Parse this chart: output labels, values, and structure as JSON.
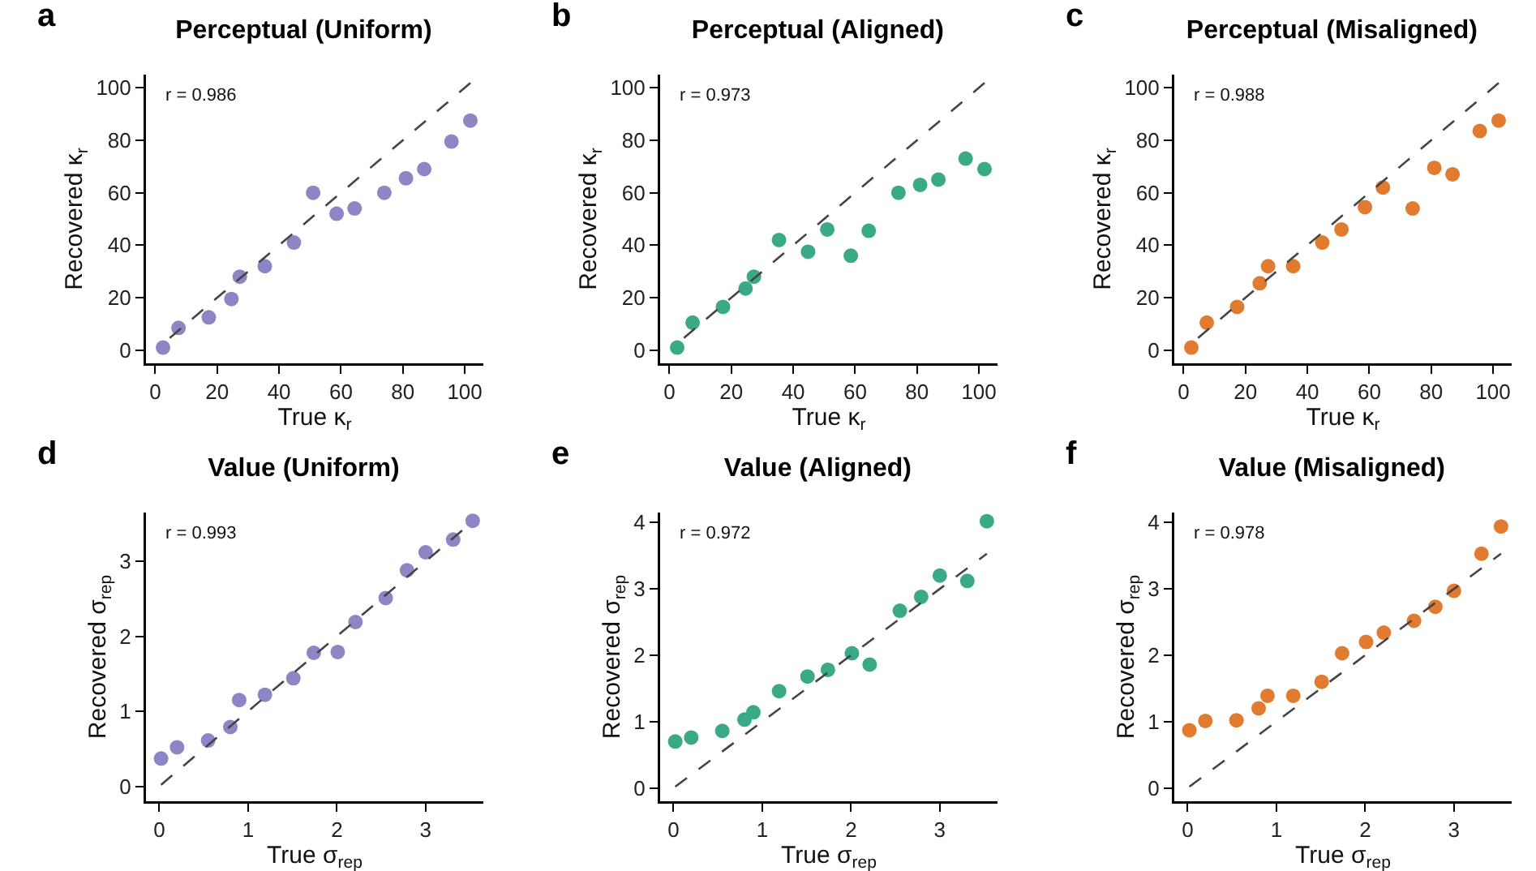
{
  "chart_data": [
    {
      "type": "scatter",
      "title": "Perceptual (Uniform)",
      "xlabel": "True κ$_{r}$",
      "ylabel": "Recovered κ$_{r}$",
      "annotations": [
        "a",
        "r = 0.986"
      ],
      "marker": "circle",
      "grid": false,
      "xlim": [
        -3,
        106
      ],
      "ylim": [
        -5,
        105
      ],
      "xticks": [
        0,
        20,
        40,
        60,
        80,
        100
      ],
      "yticks": [
        0,
        20,
        40,
        60,
        80,
        100
      ],
      "x": [
        2.5,
        7.5,
        17.3,
        24.6,
        27.3,
        35.4,
        44.8,
        51.0,
        58.6,
        64.4,
        74.0,
        81.0,
        86.9,
        95.7,
        101.8
      ],
      "series": [
        {
          "color": "#8c86c4",
          "values": [
            1,
            8.5,
            12.5,
            19.5,
            28,
            32,
            41,
            60,
            52,
            54,
            60,
            65.5,
            69,
            79.5,
            87.5
          ]
        },
        {
          "type": "line",
          "line_style": "dashed",
          "marker": "none",
          "color": "#444444",
          "x": [
            101.8,
            2.5
          ],
          "values": [
            101.8,
            2.5
          ]
        }
      ]
    },
    {
      "type": "scatter",
      "title": "Perceptual (Aligned)",
      "xlabel": "True κ$_{r}$",
      "ylabel": "Recovered κ$_{r}$",
      "annotations": [
        "b",
        "r = 0.973"
      ],
      "marker": "circle",
      "grid": false,
      "xlim": [
        -3,
        106
      ],
      "ylim": [
        -5,
        105
      ],
      "xticks": [
        0,
        20,
        40,
        60,
        80,
        100
      ],
      "yticks": [
        0,
        20,
        40,
        60,
        80,
        100
      ],
      "x": [
        2.5,
        7.5,
        17.3,
        24.6,
        27.3,
        35.4,
        44.8,
        51.0,
        58.6,
        64.4,
        74.0,
        81.0,
        86.9,
        95.7,
        101.8
      ],
      "series": [
        {
          "color": "#3aaa86",
          "values": [
            1,
            10.5,
            16.5,
            23.5,
            28,
            42,
            37.5,
            46,
            36,
            45.5,
            60,
            63,
            65,
            73,
            69
          ]
        },
        {
          "type": "line",
          "line_style": "dashed",
          "marker": "none",
          "color": "#444444",
          "x": [
            101.8,
            2.5
          ],
          "values": [
            101.8,
            2.5
          ]
        }
      ]
    },
    {
      "type": "scatter",
      "title": "Perceptual (Misaligned)",
      "xlabel": "True κ$_{r}$",
      "ylabel": "Recovered κ$_{r}$",
      "annotations": [
        "c",
        "r = 0.988"
      ],
      "marker": "circle",
      "grid": false,
      "xlim": [
        -3,
        106
      ],
      "ylim": [
        -5,
        105
      ],
      "xticks": [
        0,
        20,
        40,
        60,
        80,
        100
      ],
      "yticks": [
        0,
        20,
        40,
        60,
        80,
        100
      ],
      "x": [
        2.5,
        7.5,
        17.3,
        24.6,
        27.3,
        35.4,
        44.8,
        51.0,
        58.6,
        64.4,
        74.0,
        81.0,
        86.9,
        95.7,
        101.8
      ],
      "series": [
        {
          "color": "#e07b30",
          "values": [
            1,
            10.5,
            16.5,
            25.5,
            32,
            32,
            41,
            46,
            54.5,
            62,
            54,
            69.5,
            67,
            83.5,
            87.5
          ]
        },
        {
          "type": "line",
          "line_style": "dashed",
          "marker": "none",
          "color": "#444444",
          "x": [
            101.8,
            2.5
          ],
          "values": [
            101.8,
            2.5
          ]
        }
      ]
    },
    {
      "type": "scatter",
      "title": "Value (Uniform)",
      "xlabel": "True σ$_{rep}$",
      "ylabel": "Recovered σ$_{rep}$",
      "annotations": [
        "d",
        "r = 0.993"
      ],
      "marker": "circle",
      "grid": false,
      "xlim": [
        -0.15,
        3.65
      ],
      "ylim": [
        -0.2,
        3.65
      ],
      "xticks": [
        0,
        1,
        2,
        3
      ],
      "yticks": [
        0,
        1,
        2,
        3
      ],
      "x": [
        0.02,
        0.2,
        0.55,
        0.8,
        0.9,
        1.19,
        1.51,
        1.74,
        2.01,
        2.21,
        2.55,
        2.79,
        3.0,
        3.31,
        3.53
      ],
      "series": [
        {
          "color": "#8c86c4",
          "values": [
            0.37,
            0.52,
            0.61,
            0.79,
            1.15,
            1.22,
            1.44,
            1.78,
            1.79,
            2.19,
            2.51,
            2.88,
            3.12,
            3.29,
            3.54
          ]
        },
        {
          "type": "line",
          "line_style": "dashed",
          "marker": "none",
          "color": "#444444",
          "x": [
            0.02,
            3.53
          ],
          "values": [
            0.02,
            3.53
          ]
        }
      ]
    },
    {
      "type": "scatter",
      "title": "Value (Aligned)",
      "xlabel": "True σ$_{rep}$",
      "ylabel": "Recovered σ$_{rep}$",
      "annotations": [
        "e",
        "r = 0.972"
      ],
      "marker": "circle",
      "grid": false,
      "xlim": [
        -0.15,
        3.65
      ],
      "ylim": [
        -0.2,
        4.15
      ],
      "xticks": [
        0,
        1,
        2,
        3
      ],
      "yticks": [
        0,
        1,
        2,
        3,
        4
      ],
      "x": [
        0.02,
        0.2,
        0.55,
        0.8,
        0.9,
        1.19,
        1.51,
        1.74,
        2.01,
        2.21,
        2.55,
        2.79,
        3.0,
        3.31,
        3.53
      ],
      "series": [
        {
          "color": "#3aaa86",
          "values": [
            0.7,
            0.76,
            0.86,
            1.03,
            1.14,
            1.46,
            1.68,
            1.78,
            2.03,
            1.86,
            2.67,
            2.88,
            3.2,
            3.12,
            4.02
          ]
        },
        {
          "type": "line",
          "line_style": "dashed",
          "marker": "none",
          "color": "#444444",
          "x": [
            0.02,
            3.53
          ],
          "values": [
            0.02,
            3.53
          ]
        }
      ]
    },
    {
      "type": "scatter",
      "title": "Value (Misaligned)",
      "xlabel": "True σ$_{rep}$",
      "ylabel": "Recovered σ$_{rep}$",
      "annotations": [
        "f",
        "r = 0.978"
      ],
      "marker": "circle",
      "grid": false,
      "xlim": [
        -0.15,
        3.65
      ],
      "ylim": [
        -0.2,
        4.15
      ],
      "xticks": [
        0,
        1,
        2,
        3
      ],
      "yticks": [
        0,
        1,
        2,
        3,
        4
      ],
      "x": [
        0.02,
        0.2,
        0.55,
        0.8,
        0.9,
        1.19,
        1.51,
        1.74,
        2.01,
        2.21,
        2.55,
        2.79,
        3.0,
        3.31,
        3.53
      ],
      "series": [
        {
          "color": "#e07b30",
          "values": [
            0.87,
            1.01,
            1.02,
            1.2,
            1.39,
            1.39,
            1.6,
            2.03,
            2.2,
            2.34,
            2.52,
            2.73,
            2.97,
            3.53,
            3.94
          ]
        },
        {
          "type": "line",
          "line_style": "dashed",
          "marker": "none",
          "color": "#444444",
          "x": [
            0.02,
            3.53
          ],
          "values": [
            0.02,
            3.53
          ]
        }
      ]
    }
  ]
}
